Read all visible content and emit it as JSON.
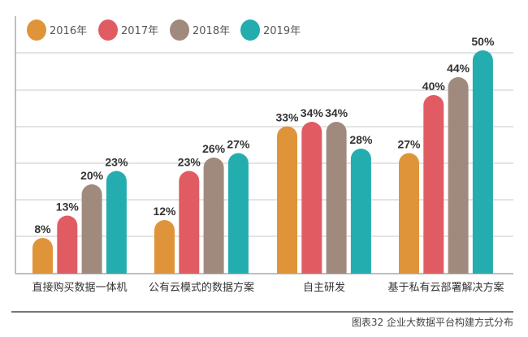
{
  "chart_data": {
    "type": "bar",
    "title": "",
    "xlabel": "",
    "ylabel": "",
    "ylim": [
      0,
      50
    ],
    "grid": true,
    "legend_position": "top-left",
    "categories": [
      "直接购买数据一体机",
      "公有云模式的数据方案",
      "自主研发",
      "基于私有云部署解决方案"
    ],
    "series": [
      {
        "name": "2016年",
        "color": "#E0943A",
        "values": [
          8,
          12,
          33,
          27
        ]
      },
      {
        "name": "2017年",
        "color": "#E05C62",
        "values": [
          13,
          23,
          34,
          40
        ]
      },
      {
        "name": "2018年",
        "color": "#A08A7E",
        "values": [
          20,
          26,
          34,
          44
        ]
      },
      {
        "name": "2019年",
        "color": "#24ADAF",
        "values": [
          23,
          27,
          28,
          50
        ]
      }
    ],
    "value_suffix": "%"
  },
  "caption": "图表32 企业大数据平台构建方式分布"
}
